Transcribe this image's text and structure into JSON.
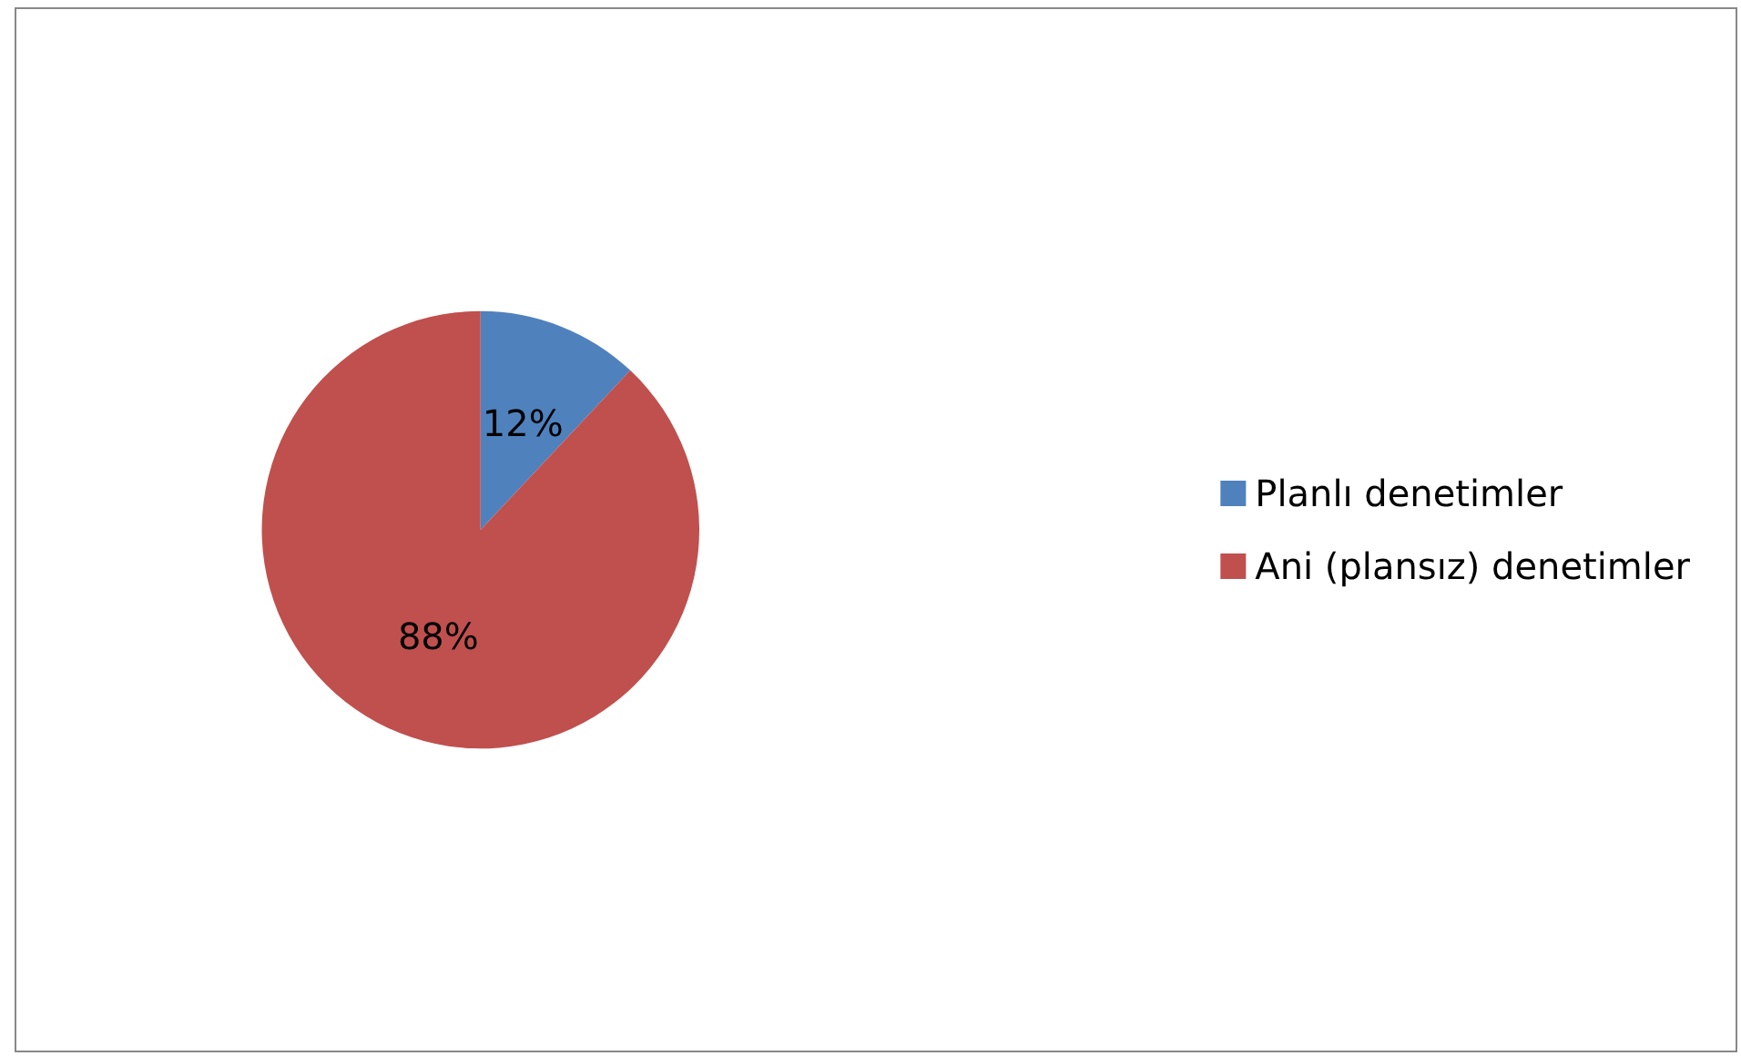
{
  "chart_data": {
    "type": "pie",
    "categories": [
      "Planlı denetimler",
      "Ani (plansız) denetimler"
    ],
    "values": [
      12,
      88
    ],
    "colors": [
      "#4f81bd",
      "#c0504d"
    ],
    "value_labels": [
      "12%",
      "88%"
    ],
    "legend": "right"
  }
}
